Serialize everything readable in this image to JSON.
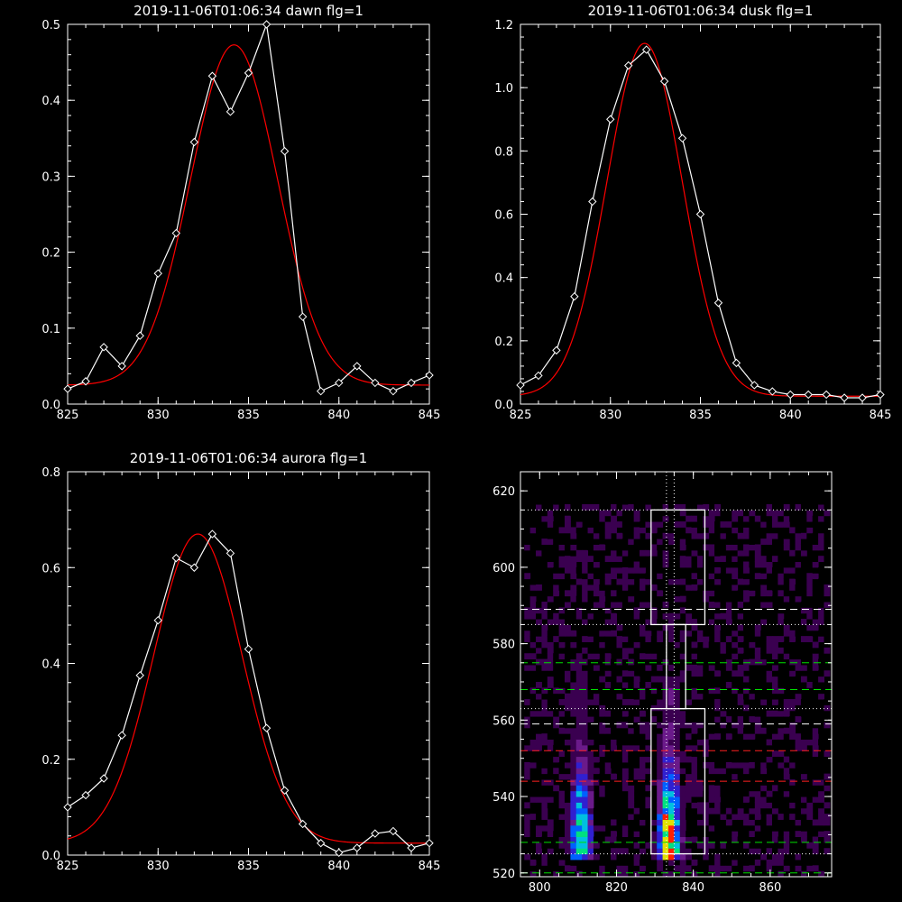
{
  "chart_data": [
    {
      "type": "line",
      "title": "2019-11-06T01:06:34 dawn flg=1",
      "xlim": [
        825,
        845
      ],
      "ylim": [
        0,
        0.5
      ],
      "xticks": [
        825,
        830,
        835,
        840,
        845
      ],
      "yticks": [
        0.0,
        0.1,
        0.2,
        0.3,
        0.4,
        0.5
      ],
      "ytick_labels": [
        "0.0",
        "0.1",
        "0.2",
        "0.3",
        "0.4",
        "0.5"
      ],
      "series": [
        {
          "kind": "data",
          "color": "#ffffff",
          "marker": "diamond",
          "x": [
            825,
            826,
            827,
            828,
            829,
            830,
            831,
            832,
            833,
            834,
            835,
            836,
            837,
            838,
            839,
            840,
            841,
            842,
            843,
            844,
            845
          ],
          "y": [
            0.02,
            0.03,
            0.075,
            0.05,
            0.09,
            0.172,
            0.225,
            0.345,
            0.432,
            0.385,
            0.436,
            0.5,
            0.333,
            0.115,
            0.017,
            0.028,
            0.05,
            0.028,
            0.017,
            0.028,
            0.038
          ]
        },
        {
          "kind": "fit",
          "color": "#ff0000",
          "model": "gaussian",
          "amplitude": 0.448,
          "center": 834.2,
          "sigma": 2.4,
          "baseline": 0.025
        }
      ]
    },
    {
      "type": "line",
      "title": "2019-11-06T01:06:34 dusk flg=1",
      "xlim": [
        825,
        845
      ],
      "ylim": [
        0,
        1.2
      ],
      "xticks": [
        825,
        830,
        835,
        840,
        845
      ],
      "yticks": [
        0.0,
        0.2,
        0.4,
        0.6,
        0.8,
        1.0,
        1.2
      ],
      "ytick_labels": [
        "0.0",
        "0.2",
        "0.4",
        "0.6",
        "0.8",
        "1.0",
        "1.2"
      ],
      "series": [
        {
          "kind": "data",
          "color": "#ffffff",
          "marker": "diamond",
          "x": [
            825,
            826,
            827,
            828,
            829,
            830,
            831,
            832,
            833,
            834,
            835,
            836,
            837,
            838,
            839,
            840,
            841,
            842,
            843,
            844,
            845
          ],
          "y": [
            0.06,
            0.09,
            0.17,
            0.34,
            0.64,
            0.9,
            1.07,
            1.12,
            1.02,
            0.84,
            0.6,
            0.32,
            0.13,
            0.06,
            0.04,
            0.03,
            0.03,
            0.03,
            0.02,
            0.02,
            0.03
          ]
        },
        {
          "kind": "fit",
          "color": "#ff0000",
          "model": "gaussian",
          "amplitude": 1.115,
          "center": 831.9,
          "sigma": 2.1,
          "baseline": 0.025
        }
      ]
    },
    {
      "type": "line",
      "title": "2019-11-06T01:06:34 aurora flg=1",
      "xlim": [
        825,
        845
      ],
      "ylim": [
        0,
        0.8
      ],
      "xticks": [
        825,
        830,
        835,
        840,
        845
      ],
      "yticks": [
        0.0,
        0.2,
        0.4,
        0.6,
        0.8
      ],
      "ytick_labels": [
        "0.0",
        "0.2",
        "0.4",
        "0.6",
        "0.8"
      ],
      "series": [
        {
          "kind": "data",
          "color": "#ffffff",
          "marker": "diamond",
          "x": [
            825,
            826,
            827,
            828,
            829,
            830,
            831,
            832,
            833,
            834,
            835,
            836,
            837,
            838,
            839,
            840,
            841,
            842,
            843,
            844,
            845
          ],
          "y": [
            0.1,
            0.125,
            0.16,
            0.25,
            0.375,
            0.49,
            0.62,
            0.6,
            0.67,
            0.63,
            0.43,
            0.265,
            0.135,
            0.065,
            0.025,
            0.005,
            0.015,
            0.045,
            0.05,
            0.015,
            0.025
          ]
        },
        {
          "kind": "fit",
          "color": "#ff0000",
          "model": "gaussian",
          "amplitude": 0.645,
          "center": 832.2,
          "sigma": 2.45,
          "baseline": 0.025
        }
      ]
    },
    {
      "type": "heatmap",
      "xlim": [
        795,
        876
      ],
      "ylim": [
        519,
        625
      ],
      "xticks": [
        800,
        820,
        840,
        860
      ],
      "yticks": [
        520,
        540,
        560,
        580,
        600,
        620
      ],
      "colormap": [
        "#000000",
        "#3a0050",
        "#6a1a8a",
        "#3020d0",
        "#0060ff",
        "#00c0e0",
        "#00e080",
        "#e0e000",
        "#ff2000"
      ],
      "bright_columns": [
        {
          "x_center": 810,
          "width": 6,
          "y_from": 523,
          "y_to": 575,
          "peak_y": 528,
          "peak": 0.75
        },
        {
          "x_center": 833,
          "width": 7,
          "y_from": 523,
          "y_to": 570,
          "peak_y": 527,
          "peak": 1.0
        }
      ],
      "boxes": [
        {
          "x": [
            829,
            843
          ],
          "y": [
            585,
            615
          ]
        },
        {
          "x": [
            833,
            838
          ],
          "y": [
            563,
            585
          ]
        },
        {
          "x": [
            829,
            843
          ],
          "y": [
            525,
            563
          ]
        }
      ],
      "dashed_lines": [
        {
          "y": 589,
          "color": "#ffffff"
        },
        {
          "y": 559,
          "color": "#ffffff"
        },
        {
          "y": 575,
          "color": "#00e000"
        },
        {
          "y": 568,
          "color": "#00e000"
        },
        {
          "y": 528,
          "color": "#00e000"
        },
        {
          "y": 520,
          "color": "#00e000"
        },
        {
          "y": 552,
          "color": "#ff2020"
        },
        {
          "y": 544,
          "color": "#ff2020"
        }
      ],
      "dotted_lines": [
        {
          "orientation": "horizontal",
          "y": 615,
          "color": "#ffffff"
        },
        {
          "orientation": "horizontal",
          "y": 585,
          "color": "#ffffff"
        },
        {
          "orientation": "horizontal",
          "y": 563,
          "color": "#ffffff"
        },
        {
          "orientation": "horizontal",
          "y": 525,
          "color": "#ffffff"
        },
        {
          "orientation": "vertical",
          "x": 833,
          "color": "#ffffff"
        },
        {
          "orientation": "vertical",
          "x": 835,
          "color": "#ffffff"
        }
      ]
    }
  ]
}
